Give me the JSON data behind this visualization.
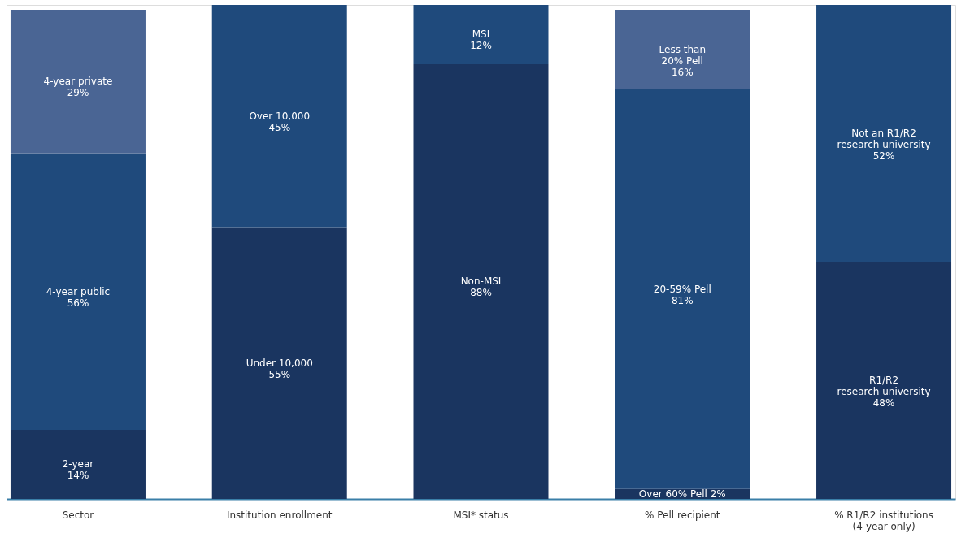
{
  "chart_data": {
    "type": "bar",
    "stacked": true,
    "categories": [
      "Sector",
      "Institution enrollment",
      "MSI* status",
      "% Pell recipient",
      "% R1/R2 institutions\n(4-year only)"
    ],
    "series": [
      {
        "color": "#1a3560",
        "values": [
          14,
          55,
          88,
          2,
          48
        ],
        "value_labels": [
          "2-year\n14%",
          "Under 10,000\n55%",
          "Non-MSI\n88%",
          "Over 60% Pell 2%",
          "R1/R2\nresearch university\n48%"
        ]
      },
      {
        "color": "#1f4a7c",
        "values": [
          56,
          45,
          12,
          81,
          52
        ],
        "value_labels": [
          "4-year public\n56%",
          "Over 10,000\n45%",
          "MSI\n12%",
          "20-59% Pell\n81%",
          "Not an R1/R2\nresearch university\n52%"
        ]
      },
      {
        "color": "#4a6594",
        "values": [
          29,
          null,
          null,
          16,
          null
        ],
        "value_labels": [
          "4-year private\n29%",
          null,
          null,
          "Less than\n20% Pell\n16%",
          null
        ]
      }
    ],
    "ylim": [
      0,
      100
    ],
    "tick_labels": "x"
  }
}
